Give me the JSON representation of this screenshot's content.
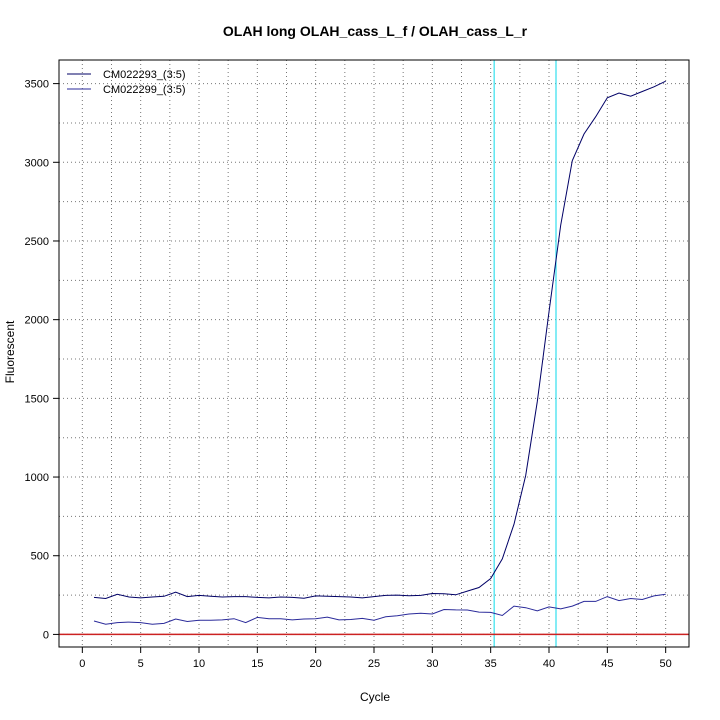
{
  "chart_data": {
    "type": "line",
    "title": "OLAH long OLAH_cass_L_f / OLAH_cass_L_r",
    "xlabel": "Cycle",
    "ylabel": "Fluorescent",
    "xlim": [
      -2,
      52
    ],
    "ylim": [
      -80,
      3650
    ],
    "xticks": [
      0,
      5,
      10,
      15,
      20,
      25,
      30,
      35,
      40,
      45,
      50
    ],
    "yticks": [
      0,
      500,
      1000,
      1500,
      2000,
      2500,
      3000,
      3500
    ],
    "grid": true,
    "legend_position": "top-left",
    "threshold_line": {
      "y": 0,
      "color": "#cc2222"
    },
    "vertical_lines": [
      {
        "x": 35.3,
        "color": "#33e0ee"
      },
      {
        "x": 40.6,
        "color": "#33e0ee"
      }
    ],
    "x": [
      1,
      2,
      3,
      4,
      5,
      6,
      7,
      8,
      9,
      10,
      11,
      12,
      13,
      14,
      15,
      16,
      17,
      18,
      19,
      20,
      21,
      22,
      23,
      24,
      25,
      26,
      27,
      28,
      29,
      30,
      31,
      32,
      33,
      34,
      35,
      36,
      37,
      38,
      39,
      40,
      41,
      42,
      43,
      44,
      45,
      46,
      47,
      48,
      49,
      50
    ],
    "series": [
      {
        "name": "CM022293_(3:5)",
        "color": "#000066",
        "values": [
          235,
          228,
          255,
          238,
          232,
          238,
          242,
          268,
          240,
          248,
          242,
          238,
          240,
          240,
          235,
          232,
          238,
          235,
          230,
          245,
          242,
          240,
          238,
          232,
          240,
          248,
          250,
          246,
          248,
          260,
          258,
          252,
          275,
          298,
          355,
          480,
          700,
          1010,
          1480,
          2050,
          2600,
          3010,
          3180,
          3290,
          3410,
          3440,
          3420,
          3450,
          3480,
          3515
        ]
      },
      {
        "name": "CM022299_(3:5)",
        "color": "#2a2a9a",
        "values": [
          85,
          65,
          75,
          78,
          75,
          65,
          70,
          98,
          82,
          90,
          90,
          92,
          100,
          75,
          108,
          100,
          100,
          92,
          98,
          100,
          110,
          92,
          95,
          102,
          90,
          112,
          118,
          130,
          135,
          130,
          158,
          156,
          155,
          142,
          140,
          120,
          180,
          170,
          150,
          175,
          162,
          180,
          210,
          210,
          240,
          215,
          228,
          222,
          245,
          255
        ]
      }
    ]
  }
}
